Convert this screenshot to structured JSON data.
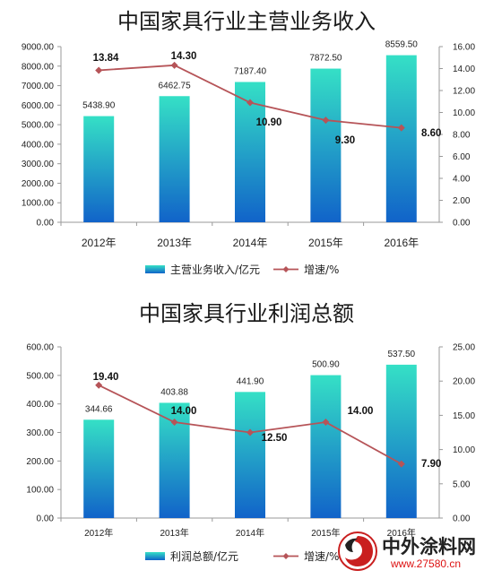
{
  "colors": {
    "bar_top": "#35e0c6",
    "bar_bottom": "#1163c9",
    "line": "#b65458",
    "marker": "#b65458",
    "axis": "#9a9a9a"
  },
  "chart_data": [
    {
      "type": "bar",
      "title": "中国家具行业主营业务收入",
      "categories": [
        "2012年",
        "2013年",
        "2014年",
        "2015年",
        "2016年"
      ],
      "series": [
        {
          "name": "主营业务收入/亿元",
          "type": "bar",
          "axis": "left",
          "values": [
            5438.9,
            6462.75,
            7187.4,
            7872.5,
            8559.5
          ],
          "labels": [
            "5438.90",
            "6462.75",
            "7187.40",
            "7872.50",
            "8559.50"
          ]
        },
        {
          "name": "增速/%",
          "type": "line",
          "axis": "right",
          "values": [
            13.84,
            14.3,
            10.9,
            9.3,
            8.6
          ],
          "labels": [
            "13.84",
            "14.30",
            "10.90",
            "9.30",
            "8.60"
          ]
        }
      ],
      "left_axis": {
        "range": [
          0,
          9000
        ],
        "ticks": [
          "0.00",
          "1000.00",
          "2000.00",
          "3000.00",
          "4000.00",
          "5000.00",
          "6000.00",
          "7000.00",
          "8000.00",
          "9000.00"
        ]
      },
      "right_axis": {
        "range": [
          0,
          16
        ],
        "ticks": [
          "0.00",
          "2.00",
          "4.00",
          "6.00",
          "8.00",
          "10.00",
          "12.00",
          "14.00",
          "16.00"
        ]
      },
      "grid": false,
      "legend": "bottom"
    },
    {
      "type": "bar",
      "title": "中国家具行业利润总额",
      "categories": [
        "2012年",
        "2013年",
        "2014年",
        "2015年",
        "2016年"
      ],
      "series": [
        {
          "name": "利润总额/亿元",
          "type": "bar",
          "axis": "left",
          "values": [
            344.66,
            403.88,
            441.9,
            500.9,
            537.5
          ],
          "labels": [
            "344.66",
            "403.88",
            "441.90",
            "500.90",
            "537.50"
          ]
        },
        {
          "name": "增速/%",
          "type": "line",
          "axis": "right",
          "values": [
            19.4,
            14.0,
            12.5,
            14.0,
            7.9
          ],
          "labels": [
            "19.40",
            "14.00",
            "12.50",
            "14.00",
            "7.90"
          ]
        }
      ],
      "left_axis": {
        "range": [
          0,
          600
        ],
        "ticks": [
          "0.00",
          "100.00",
          "200.00",
          "300.00",
          "400.00",
          "500.00",
          "600.00"
        ]
      },
      "right_axis": {
        "range": [
          0,
          25
        ],
        "ticks": [
          "0.00",
          "5.00",
          "10.00",
          "15.00",
          "20.00",
          "25.00"
        ]
      },
      "grid": false,
      "legend": "bottom"
    }
  ],
  "watermark": {
    "text": "中外涂料网",
    "url": "www.27580.cn",
    "logo_icon": "brand-logo-icon"
  }
}
